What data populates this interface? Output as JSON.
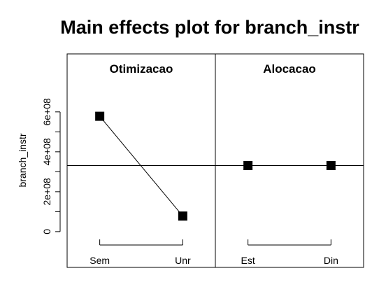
{
  "chart_data": {
    "type": "line",
    "title": "Main effects plot for branch_instr",
    "ylabel": "branch_instr",
    "ylim": [
      -60000000,
      880000000
    ],
    "yticks": [
      0,
      200000000,
      400000000,
      600000000
    ],
    "ytick_labels": [
      "0",
      "2e+08",
      "4e+08",
      "6e+08"
    ],
    "grand_mean": 331000000,
    "panels": [
      {
        "factor": "Otimizacao",
        "categories": [
          "Sem",
          "Unr"
        ],
        "values": [
          578000000,
          78000000
        ]
      },
      {
        "factor": "Alocacao",
        "categories": [
          "Est",
          "Din"
        ],
        "values": [
          331000000,
          331000000
        ]
      }
    ]
  }
}
